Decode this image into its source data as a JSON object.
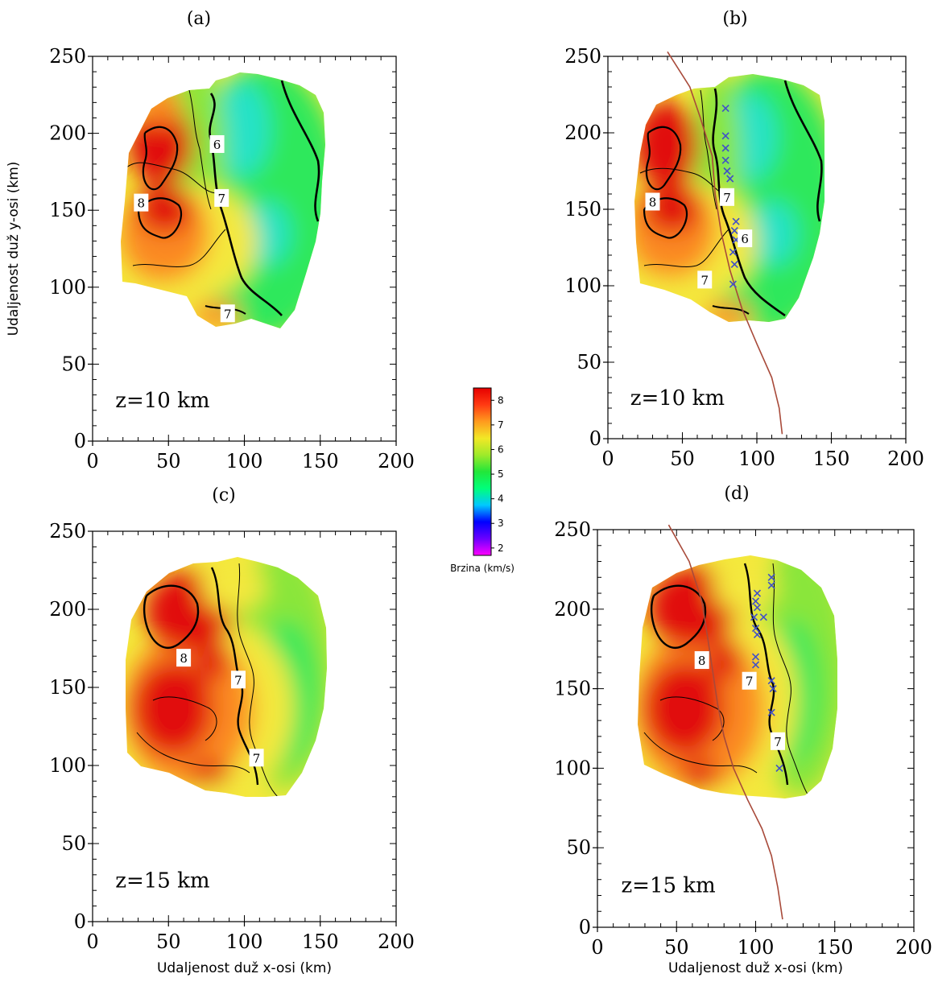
{
  "chart_data": [
    {
      "type": "heatmap",
      "panel": "(a)",
      "depth_label": "z=10 km",
      "xlim": [
        0,
        200
      ],
      "ylim": [
        0,
        250
      ],
      "xticks": [
        0,
        50,
        100,
        150,
        200
      ],
      "yticks": [
        0,
        50,
        100,
        150,
        200,
        250
      ],
      "xlabel": "",
      "ylabel": "Udaljenost duž y-osi (km)",
      "contour_labels": [
        {
          "text": "6",
          "x": 82,
          "y": 193
        },
        {
          "text": "8",
          "x": 32,
          "y": 155
        },
        {
          "text": "7",
          "x": 85,
          "y": 158
        },
        {
          "text": "7",
          "x": 89,
          "y": 83
        }
      ],
      "fault_trace": [],
      "markers": []
    },
    {
      "type": "heatmap",
      "panel": "(b)",
      "depth_label": "z=10 km",
      "xlim": [
        0,
        200
      ],
      "ylim": [
        0,
        250
      ],
      "xticks": [
        0,
        50,
        100,
        150,
        200
      ],
      "yticks": [
        0,
        50,
        100,
        150,
        200,
        250
      ],
      "xlabel": "",
      "ylabel": "",
      "contour_labels": [
        {
          "text": "8",
          "x": 30,
          "y": 155
        },
        {
          "text": "7",
          "x": 80,
          "y": 158
        },
        {
          "text": "6",
          "x": 92,
          "y": 131
        },
        {
          "text": "7",
          "x": 65,
          "y": 104
        }
      ],
      "fault_trace": [
        [
          40,
          253
        ],
        [
          55,
          230
        ],
        [
          62,
          210
        ],
        [
          70,
          185
        ],
        [
          72,
          160
        ],
        [
          76,
          135
        ],
        [
          82,
          110
        ],
        [
          90,
          85
        ],
        [
          100,
          62
        ],
        [
          110,
          40
        ],
        [
          115,
          20
        ],
        [
          117,
          3
        ]
      ],
      "markers": [
        [
          79,
          216
        ],
        [
          79,
          198
        ],
        [
          79,
          190
        ],
        [
          79,
          182
        ],
        [
          80,
          175
        ],
        [
          82,
          170
        ],
        [
          86,
          142
        ],
        [
          85,
          136
        ],
        [
          86,
          130
        ],
        [
          84,
          122
        ],
        [
          85,
          114
        ],
        [
          84,
          101
        ]
      ]
    },
    {
      "type": "heatmap",
      "panel": "(c)",
      "depth_label": "z=15 km",
      "xlim": [
        0,
        200
      ],
      "ylim": [
        0,
        250
      ],
      "xticks": [
        0,
        50,
        100,
        150,
        200
      ],
      "yticks": [
        0,
        50,
        100,
        150,
        200,
        250
      ],
      "xlabel": "Udaljenost duž x-osi (km)",
      "ylabel": "",
      "contour_labels": [
        {
          "text": "8",
          "x": 60,
          "y": 169
        },
        {
          "text": "7",
          "x": 96,
          "y": 155
        },
        {
          "text": "7",
          "x": 108,
          "y": 105
        }
      ],
      "fault_trace": [],
      "markers": []
    },
    {
      "type": "heatmap",
      "panel": "(d)",
      "depth_label": "z=15 km",
      "xlim": [
        0,
        200
      ],
      "ylim": [
        0,
        250
      ],
      "xticks": [
        0,
        50,
        100,
        150,
        200
      ],
      "yticks": [
        0,
        50,
        100,
        150,
        200,
        250
      ],
      "xlabel": "Udaljenost duž x-osi (km)",
      "ylabel": "",
      "contour_labels": [
        {
          "text": "8",
          "x": 66,
          "y": 168
        },
        {
          "text": "7",
          "x": 96,
          "y": 155
        },
        {
          "text": "7",
          "x": 114,
          "y": 117
        }
      ],
      "fault_trace": [
        [
          45,
          253
        ],
        [
          58,
          230
        ],
        [
          66,
          205
        ],
        [
          70,
          180
        ],
        [
          73,
          160
        ],
        [
          76,
          140
        ],
        [
          80,
          120
        ],
        [
          86,
          100
        ],
        [
          95,
          80
        ],
        [
          104,
          62
        ],
        [
          110,
          45
        ],
        [
          114,
          25
        ],
        [
          117,
          5
        ]
      ],
      "markers": [
        [
          110,
          220
        ],
        [
          110,
          215
        ],
        [
          101,
          210
        ],
        [
          100,
          205
        ],
        [
          101,
          201
        ],
        [
          99,
          195
        ],
        [
          100,
          188
        ],
        [
          101,
          184
        ],
        [
          105,
          195
        ],
        [
          100,
          170
        ],
        [
          100,
          165
        ],
        [
          110,
          155
        ],
        [
          111,
          150
        ],
        [
          110,
          135
        ],
        [
          115,
          100
        ]
      ]
    }
  ],
  "colorbar": {
    "title": "Brzina (km/s)",
    "ticks": [
      2,
      3,
      4,
      5,
      6,
      7,
      8
    ],
    "range": [
      1.7,
      8.5
    ],
    "stops": [
      "#ff00ff",
      "#6a00ff",
      "#0000ff",
      "#00c8ff",
      "#00ff7a",
      "#22e63a",
      "#9fea2a",
      "#f2e826",
      "#ff9a1e",
      "#ff3a12",
      "#e60000"
    ]
  },
  "colors": {
    "velocity_high": "#e10b0b",
    "velocity_mid_high": "#fb8a20",
    "velocity_mid": "#f4e83c",
    "velocity_low_mid": "#8ae63a",
    "velocity_low": "#2ee85c",
    "velocity_lowest": "#25e2c8",
    "fault_trace": "#a84a3a",
    "marker": "#4050c8",
    "contour": "#000000"
  }
}
